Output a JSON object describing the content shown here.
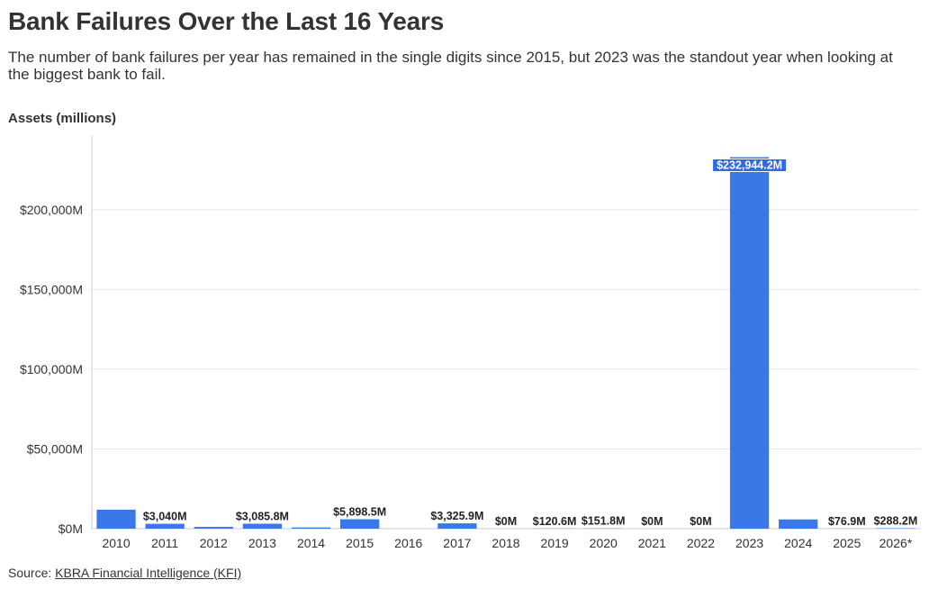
{
  "header": {
    "title": "Bank Failures Over the Last 16 Years",
    "subtitle": "The number of bank failures per year has remained in the single digits since 2015, but 2023 was the standout year when looking at the biggest bank to fail."
  },
  "footer": {
    "source_prefix": "Source: ",
    "source_link": "KBRA Financial Intelligence (KFI)"
  },
  "colors": {
    "bar": "#3b78e7",
    "grid": "#e6e6e6",
    "axis": "#cccccc"
  },
  "chart_data": {
    "type": "bar",
    "title": "Bank Failures Over the Last 16 Years",
    "ylabel": "Assets (millions)",
    "xlabel": "",
    "ylim": [
      0,
      240000
    ],
    "y_ticks": [
      0,
      50000,
      100000,
      150000,
      200000
    ],
    "y_tick_labels": [
      "$0M",
      "$50,000M",
      "$100,000M",
      "$150,000M",
      "$200,000M"
    ],
    "grid": true,
    "categories": [
      "2010",
      "2011",
      "2012",
      "2013",
      "2014",
      "2015",
      "2016",
      "2017",
      "2018",
      "2019",
      "2020",
      "2021",
      "2022",
      "2023",
      "2024",
      "2025",
      "2026*"
    ],
    "values": [
      11900,
      3040,
      1100,
      3085.8,
      750,
      5898.5,
      0,
      3325.9,
      0,
      120.6,
      151.8,
      0,
      0,
      232944.2,
      5800,
      76.9,
      288.2
    ],
    "data_labels": [
      "",
      "$3,040M",
      "",
      "$3,085.8M",
      "",
      "$5,898.5M",
      "",
      "$3,325.9M",
      "$0M",
      "$120.6M",
      "$151.8M",
      "$0M",
      "$0M",
      "$232,944.2M",
      "",
      "$76.9M",
      "$288.2M"
    ]
  }
}
